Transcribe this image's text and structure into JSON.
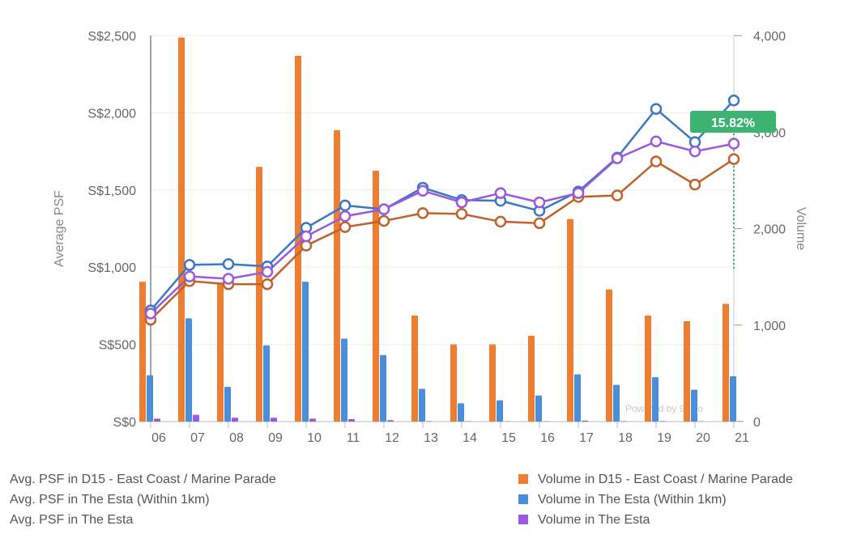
{
  "chart_data": {
    "type": "bar-line-combo",
    "categories": [
      "06",
      "07",
      "08",
      "09",
      "10",
      "11",
      "12",
      "13",
      "14",
      "15",
      "16",
      "17",
      "18",
      "19",
      "20",
      "21"
    ],
    "y_left": {
      "label": "Average PSF",
      "ticks": [
        "S$0",
        "S$500",
        "S$1,000",
        "S$1,500",
        "S$2,000",
        "S$2,500"
      ],
      "range": [
        0,
        2500
      ]
    },
    "y_right": {
      "label": "Volume",
      "ticks": [
        "0",
        "1,000",
        "2,000",
        "3,000",
        "4,000"
      ],
      "range": [
        0,
        4000
      ]
    },
    "bar_series": [
      {
        "name": "Volume in D15 - East Coast / Marine Parade",
        "color": "#ed7d31",
        "values": [
          1450,
          3980,
          1440,
          2640,
          3790,
          3020,
          2600,
          1100,
          800,
          800,
          890,
          2100,
          1370,
          1100,
          1040,
          1220
        ]
      },
      {
        "name": "Volume in The Esta (Within 1km)",
        "color": "#4a8fdc",
        "values": [
          480,
          1070,
          360,
          790,
          1450,
          860,
          690,
          340,
          190,
          220,
          270,
          490,
          380,
          460,
          330,
          470
        ]
      },
      {
        "name": "Volume in The Esta",
        "color": "#9b59e0",
        "values": [
          30,
          70,
          40,
          40,
          30,
          25,
          15,
          5,
          3,
          3,
          3,
          10,
          5,
          5,
          3,
          5
        ]
      }
    ],
    "line_series": [
      {
        "name": "Avg. PSF in D15 - East Coast / Marine Parade",
        "color": "#c0622a",
        "values": [
          660,
          910,
          890,
          890,
          1140,
          1260,
          1300,
          1350,
          1345,
          1295,
          1285,
          1455,
          1465,
          1685,
          1535,
          1700
        ]
      },
      {
        "name": "Avg. PSF in The Esta (Within 1km)",
        "color": "#3a78c2",
        "values": [
          720,
          1015,
          1020,
          1005,
          1255,
          1400,
          1375,
          1515,
          1435,
          1430,
          1365,
          1490,
          1710,
          2025,
          1810,
          2080
        ]
      },
      {
        "name": "Avg. PSF in The Esta",
        "color": "#9b59e0",
        "values": [
          700,
          940,
          925,
          970,
          1200,
          1330,
          1375,
          1495,
          1420,
          1480,
          1420,
          1480,
          1705,
          1815,
          1750,
          1800
        ]
      }
    ],
    "annotation": {
      "text": "15.82%",
      "color": "#3cb371",
      "category": "21"
    },
    "credit": "Powered by 99.co",
    "grid": true,
    "legend_position": "bottom"
  }
}
